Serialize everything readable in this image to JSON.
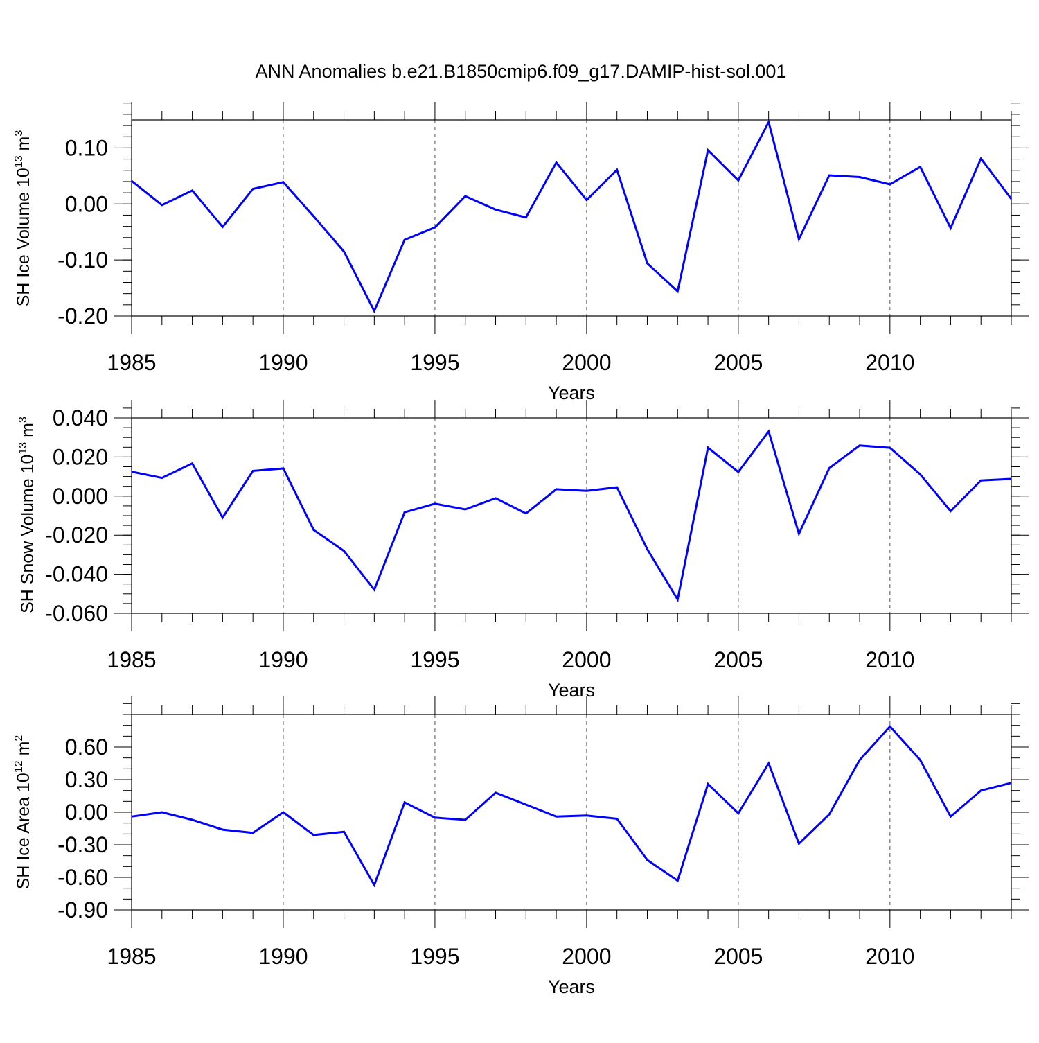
{
  "title": "ANN Anomalies b.e21.B1850cmip6.f09_g17.DAMIP-hist-sol.001",
  "line_color": "#0000ff",
  "chart_data": [
    {
      "type": "line",
      "ylabel": "SH Ice Volume 10",
      "ylabel_exp": "13",
      "ylabel_unit": "m",
      "ylabel_unit_exp": "3",
      "xlabel": "Years",
      "xlim": [
        1985,
        2014
      ],
      "ylim": [
        -0.2,
        0.15
      ],
      "yticks": [
        -0.2,
        -0.1,
        0.0,
        0.1
      ],
      "ytick_labels": [
        "-0.20",
        "-0.10",
        "0.00",
        "0.10"
      ],
      "yminor_step": 0.02,
      "xticks": [
        1985,
        1990,
        1995,
        2000,
        2005,
        2010
      ],
      "xtick_labels": [
        "1985",
        "1990",
        "1995",
        "2000",
        "2005",
        "2010"
      ],
      "x": [
        1985,
        1986,
        1987,
        1988,
        1989,
        1990,
        1991,
        1992,
        1993,
        1994,
        1995,
        1996,
        1997,
        1998,
        1999,
        2000,
        2001,
        2002,
        2003,
        2004,
        2005,
        2006,
        2007,
        2008,
        2009,
        2010,
        2011,
        2012,
        2013,
        2014
      ],
      "y": [
        0.041,
        -0.002,
        0.024,
        -0.041,
        0.027,
        0.039,
        -0.022,
        -0.085,
        -0.191,
        -0.064,
        -0.042,
        0.014,
        -0.01,
        -0.024,
        0.074,
        0.007,
        0.061,
        -0.106,
        -0.156,
        0.096,
        0.042,
        0.146,
        -0.063,
        0.051,
        0.048,
        0.035,
        0.066,
        -0.043,
        0.081,
        0.009
      ]
    },
    {
      "type": "line",
      "ylabel": "SH Snow Volume 10",
      "ylabel_exp": "13",
      "ylabel_unit": "m",
      "ylabel_unit_exp": "3",
      "xlabel": "Years",
      "xlim": [
        1985,
        2014
      ],
      "ylim": [
        -0.06,
        0.04
      ],
      "yticks": [
        -0.06,
        -0.04,
        -0.02,
        0.0,
        0.02,
        0.04
      ],
      "ytick_labels": [
        "-0.060",
        "-0.040",
        "-0.020",
        "0.000",
        "0.020",
        "0.040"
      ],
      "yminor_step": 0.005,
      "xticks": [
        1985,
        1990,
        1995,
        2000,
        2005,
        2010
      ],
      "xtick_labels": [
        "1985",
        "1990",
        "1995",
        "2000",
        "2005",
        "2010"
      ],
      "x": [
        1985,
        1986,
        1987,
        1988,
        1989,
        1990,
        1991,
        1992,
        1993,
        1994,
        1995,
        1996,
        1997,
        1998,
        1999,
        2000,
        2001,
        2002,
        2003,
        2004,
        2005,
        2006,
        2007,
        2008,
        2009,
        2010,
        2011,
        2012,
        2013,
        2014
      ],
      "y": [
        0.0125,
        0.0093,
        0.0167,
        -0.011,
        0.0129,
        0.0141,
        -0.0173,
        -0.0281,
        -0.0479,
        -0.0083,
        -0.0039,
        -0.0068,
        -0.0011,
        -0.0089,
        0.0035,
        0.0027,
        0.0045,
        -0.0272,
        -0.0529,
        0.0248,
        0.0123,
        0.0331,
        -0.0193,
        0.0143,
        0.0259,
        0.0247,
        0.0111,
        -0.0077,
        0.008,
        0.0088
      ]
    },
    {
      "type": "line",
      "ylabel": "SH Ice Area 10",
      "ylabel_exp": "12",
      "ylabel_unit": "m",
      "ylabel_unit_exp": "2",
      "xlabel": "Years",
      "xlim": [
        1985,
        2014
      ],
      "ylim": [
        -0.9,
        0.9
      ],
      "yticks": [
        -0.9,
        -0.6,
        -0.3,
        0.0,
        0.3,
        0.6
      ],
      "ytick_labels": [
        "-0.90",
        "-0.60",
        "-0.30",
        "0.00",
        "0.30",
        "0.60"
      ],
      "yminor_step": 0.1,
      "xticks": [
        1985,
        1990,
        1995,
        2000,
        2005,
        2010
      ],
      "xtick_labels": [
        "1985",
        "1990",
        "1995",
        "2000",
        "2005",
        "2010"
      ],
      "x": [
        1985,
        1986,
        1987,
        1988,
        1989,
        1990,
        1991,
        1992,
        1993,
        1994,
        1995,
        1996,
        1997,
        1998,
        1999,
        2000,
        2001,
        2002,
        2003,
        2004,
        2005,
        2006,
        2007,
        2008,
        2009,
        2010,
        2011,
        2012,
        2013,
        2014
      ],
      "y": [
        -0.04,
        0.0,
        -0.07,
        -0.16,
        -0.19,
        0.0,
        -0.21,
        -0.18,
        -0.67,
        0.09,
        -0.05,
        -0.07,
        0.18,
        0.07,
        -0.04,
        -0.03,
        -0.06,
        -0.44,
        -0.63,
        0.26,
        -0.01,
        0.45,
        -0.29,
        -0.02,
        0.48,
        0.79,
        0.48,
        -0.04,
        0.2,
        0.27
      ]
    }
  ]
}
